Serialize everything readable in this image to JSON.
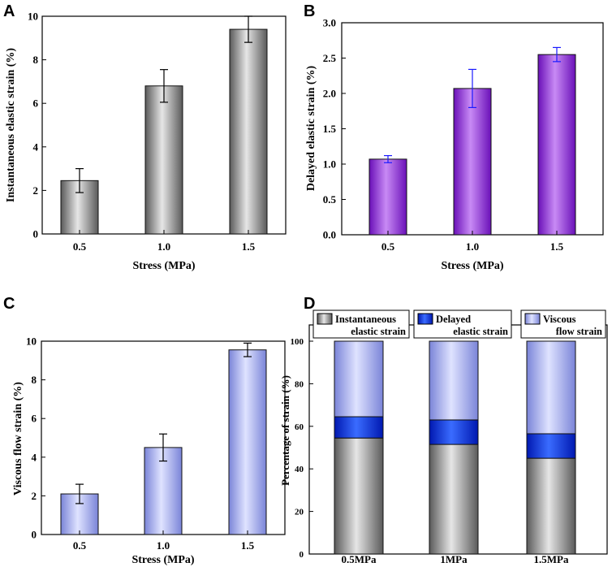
{
  "colors": {
    "panel_a_bar": "#9a9a9a",
    "panel_b_bar": "#9b30e0",
    "panel_b_error": "#1a1aff",
    "panel_c_bar": "#9ea6ec",
    "instantaneous": "#9a9a9a",
    "delayed": "#1030e0",
    "viscous": "#a8b0f0"
  },
  "chart_data": [
    {
      "id": "A",
      "panel_label": "A",
      "type": "bar",
      "categories": [
        "0.5",
        "1.0",
        "1.5"
      ],
      "values": [
        2.45,
        6.8,
        9.4
      ],
      "errors": [
        0.55,
        0.75,
        0.6
      ],
      "ylim": [
        0,
        10
      ],
      "yticks": [
        "0",
        "2",
        "4",
        "6",
        "8",
        "10"
      ],
      "xlabel": "Stress (MPa)",
      "ylabel": "Instantaneous elastic strain (%)"
    },
    {
      "id": "B",
      "panel_label": "B",
      "type": "bar",
      "categories": [
        "0.5",
        "1.0",
        "1.5"
      ],
      "values": [
        1.07,
        2.07,
        2.55
      ],
      "errors": [
        0.05,
        0.27,
        0.1
      ],
      "ylim": [
        0,
        3.0
      ],
      "yticks": [
        "0.0",
        "0.5",
        "1.0",
        "1.5",
        "2.0",
        "2.5",
        "3.0"
      ],
      "xlabel": "Stress (MPa)",
      "ylabel": "Delayed elastic strain (%)"
    },
    {
      "id": "C",
      "panel_label": "C",
      "type": "bar",
      "categories": [
        "0.5",
        "1.0",
        "1.5"
      ],
      "values": [
        2.1,
        4.5,
        9.55
      ],
      "errors": [
        0.5,
        0.7,
        0.35
      ],
      "ylim": [
        0,
        10
      ],
      "yticks": [
        "0",
        "2",
        "4",
        "6",
        "8",
        "10"
      ],
      "xlabel": "Stress (MPa)",
      "ylabel": "Viscous flow strain (%)"
    },
    {
      "id": "D",
      "panel_label": "D",
      "type": "bar",
      "stacked": true,
      "categories": [
        "0.5MPa",
        "1MPa",
        "1.5MPa"
      ],
      "series": [
        {
          "name": "Instantaneous elastic strain",
          "legend_lines": [
            "Instantaneous",
            "elastic strain"
          ],
          "values": [
            54.5,
            51.5,
            45
          ]
        },
        {
          "name": "Delayed elastic strain",
          "legend_lines": [
            "Delayed",
            "elastic strain"
          ],
          "values": [
            10,
            11.5,
            11.5
          ]
        },
        {
          "name": "Viscous flow strain",
          "legend_lines": [
            "Viscous",
            "flow strain"
          ],
          "values": [
            35.5,
            37,
            43.5
          ]
        }
      ],
      "ylim": [
        0,
        100
      ],
      "yticks": [
        "0",
        "20",
        "40",
        "60",
        "80",
        "100"
      ],
      "xlabel": "",
      "ylabel": "Percentage of strain (%)"
    }
  ]
}
